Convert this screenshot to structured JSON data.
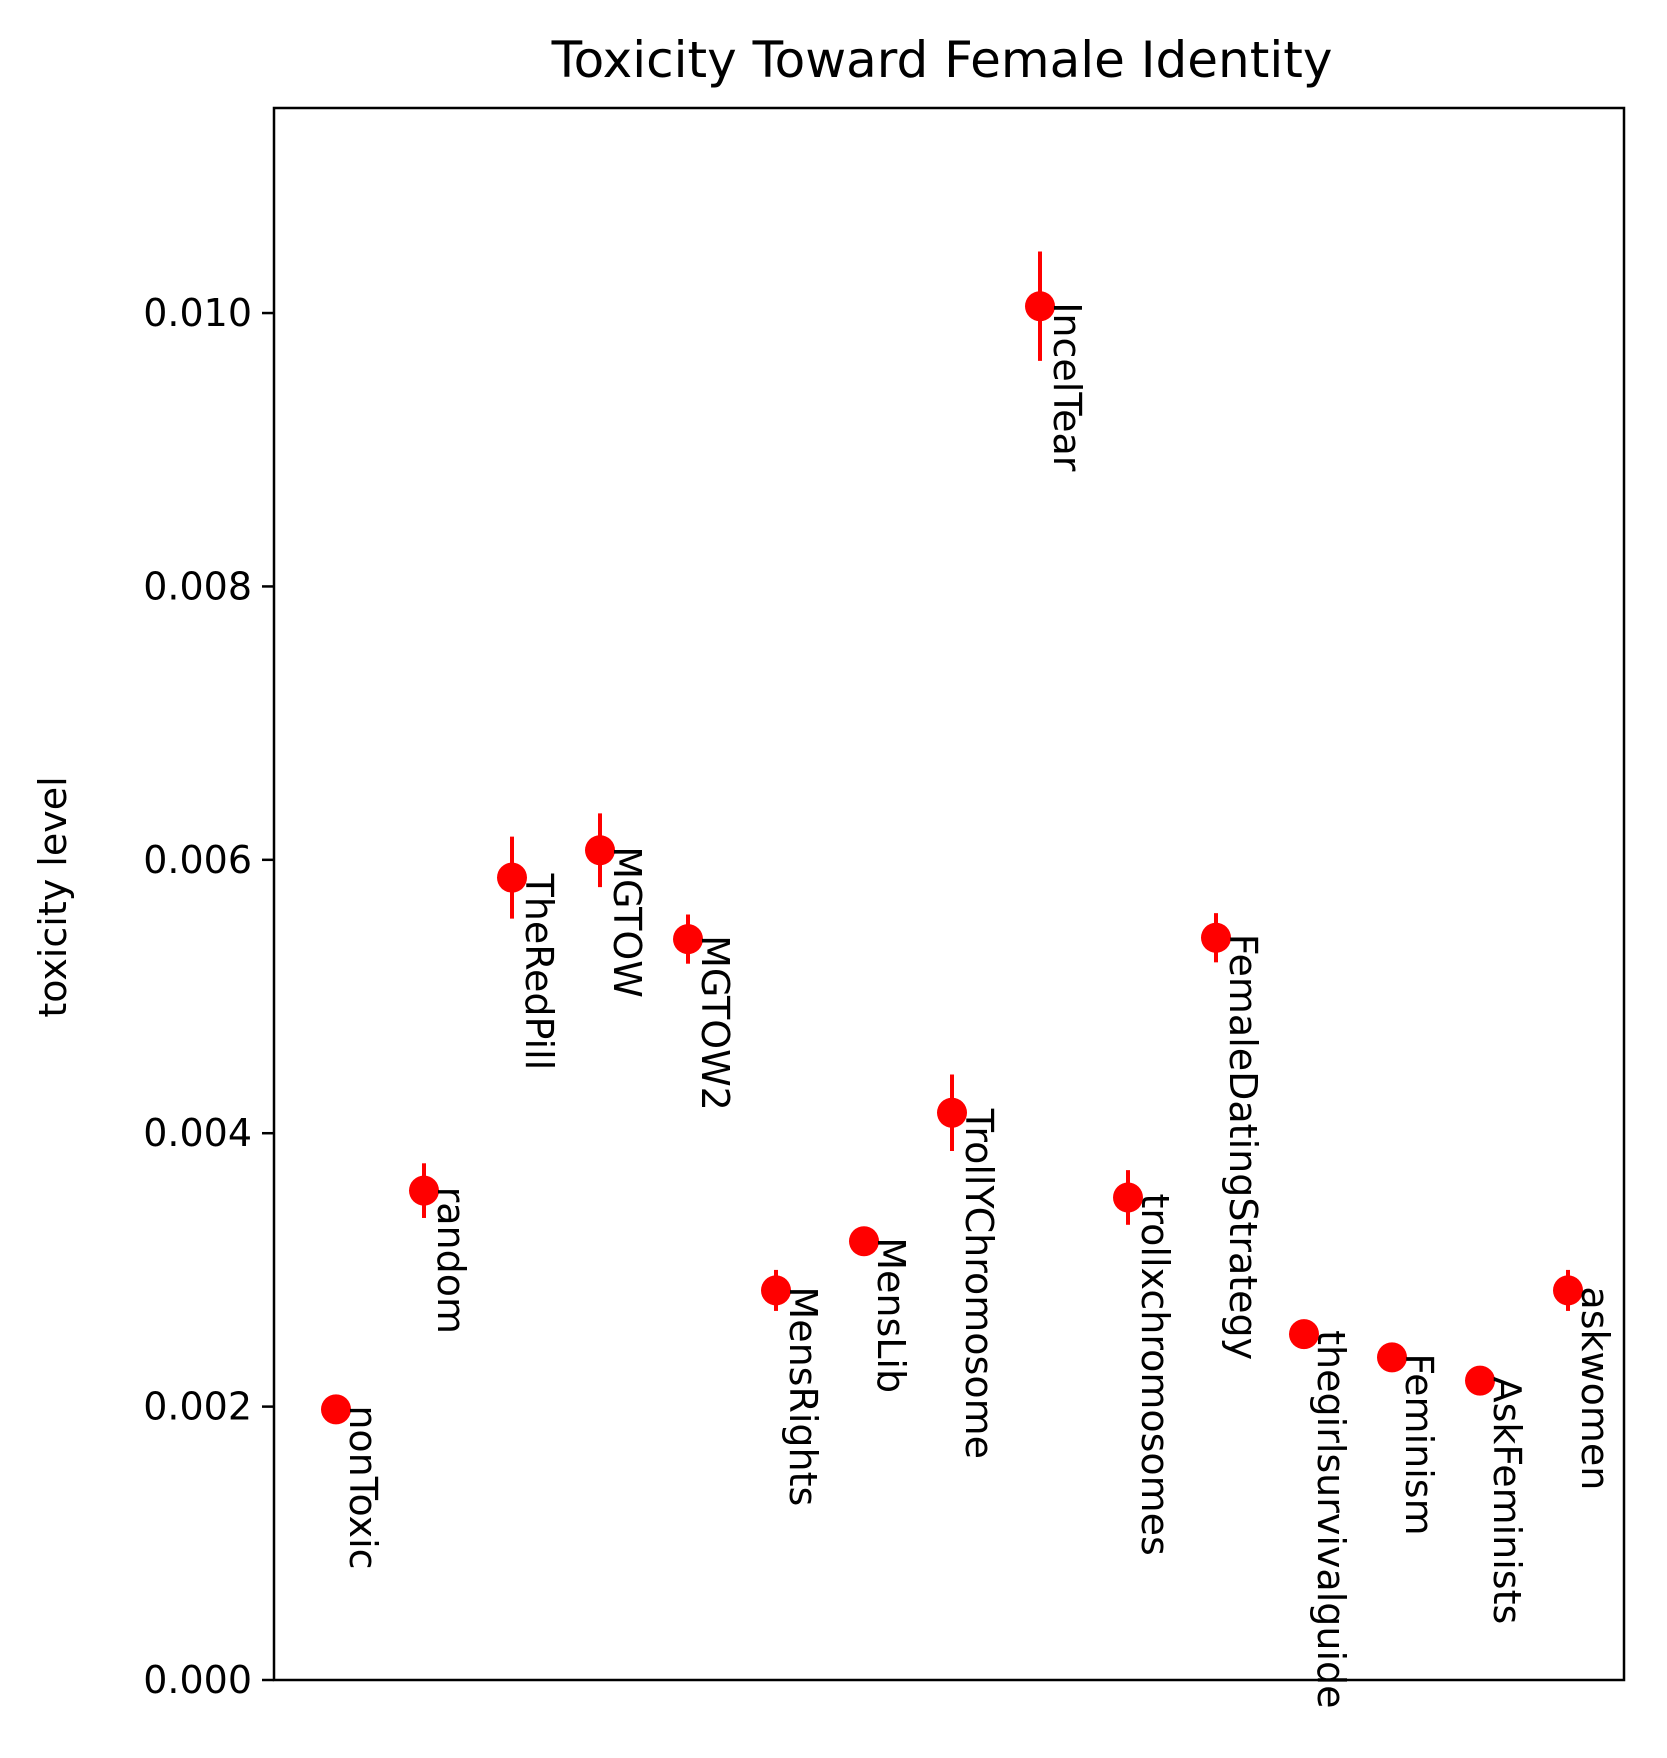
{
  "chart_data": {
    "type": "scatter",
    "title": "Toxicity Toward Female Identity",
    "xlabel": "",
    "ylabel": "toxicity level",
    "ylim": [
      0,
      0.0115
    ],
    "yticks": [
      "0.000",
      "0.002",
      "0.004",
      "0.006",
      "0.008",
      "0.010"
    ],
    "ytick_values": [
      0,
      0.002,
      0.004,
      0.006,
      0.008,
      0.01
    ],
    "grid": false,
    "legend": "none",
    "marker_color": "#ff0000",
    "points": [
      {
        "label": "nonToxic",
        "value": 0.00198,
        "err": 5e-05
      },
      {
        "label": "random",
        "value": 0.00358,
        "err": 0.0002
      },
      {
        "label": "TheRedPill",
        "value": 0.00587,
        "err": 0.0003
      },
      {
        "label": "MGTOW",
        "value": 0.00607,
        "err": 0.00027
      },
      {
        "label": "MGTOW2",
        "value": 0.00542,
        "err": 0.00018
      },
      {
        "label": "MensRights",
        "value": 0.00285,
        "err": 0.00015
      },
      {
        "label": "MensLib",
        "value": 0.00321,
        "err": 5e-05
      },
      {
        "label": "TrollYChromosome",
        "value": 0.00415,
        "err": 0.00028
      },
      {
        "label": "IncelTear",
        "value": 0.01005,
        "err": 0.0004
      },
      {
        "label": "trollxchromosomes",
        "value": 0.00353,
        "err": 0.0002
      },
      {
        "label": "FemaleDatingStrategy",
        "value": 0.00543,
        "err": 0.00018
      },
      {
        "label": "thegirlsurvivalguide",
        "value": 0.00253,
        "err": 5e-05
      },
      {
        "label": "Feminism",
        "value": 0.00236,
        "err": 5e-05
      },
      {
        "label": "AskFeminists",
        "value": 0.00219,
        "err": 5e-05
      },
      {
        "label": "askwomen",
        "value": 0.00285,
        "err": 0.00015
      }
    ]
  }
}
